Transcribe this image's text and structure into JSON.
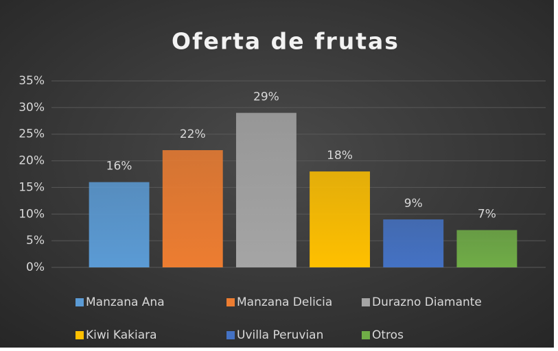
{
  "chart_data": {
    "type": "bar",
    "title": "Oferta de frutas",
    "categories": [
      "Manzana Ana",
      "Manzana Delicia",
      "Durazno Diamante",
      "Kiwi Kakiara",
      "Uvilla Peruvian",
      "Otros"
    ],
    "values": [
      16,
      22,
      29,
      18,
      9,
      7
    ],
    "value_labels": [
      "16%",
      "22%",
      "29%",
      "18%",
      "9%",
      "7%"
    ],
    "colors": [
      "#5b9bd5",
      "#ed7d31",
      "#a5a5a5",
      "#ffc000",
      "#4472c4",
      "#70ad47"
    ],
    "ylim": [
      0,
      35
    ],
    "yticks": [
      {
        "value": 0,
        "label": "0%"
      },
      {
        "value": 5,
        "label": "5%"
      },
      {
        "value": 10,
        "label": "10%"
      },
      {
        "value": 15,
        "label": "15%"
      },
      {
        "value": 20,
        "label": "20%"
      },
      {
        "value": 25,
        "label": "25%"
      },
      {
        "value": 30,
        "label": "30%"
      },
      {
        "value": 35,
        "label": "35%"
      }
    ],
    "grid": true,
    "legend": "bottom"
  }
}
